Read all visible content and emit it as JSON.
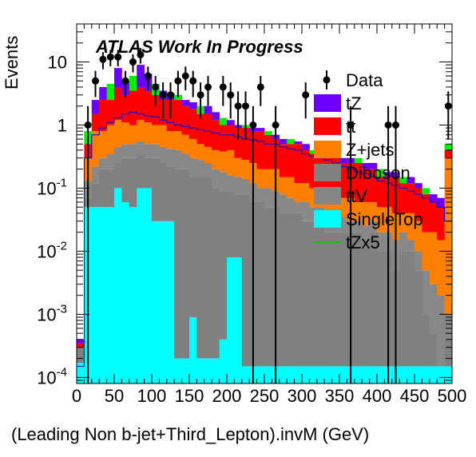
{
  "chart_data": {
    "type": "bar",
    "title": "ATLAS Work In Progress",
    "xlabel": "(Leading Non b-jet+Third_Lepton).invM (GeV)",
    "ylabel": "Events",
    "xlim": [
      0,
      500
    ],
    "ylim": [
      8e-05,
      40
    ],
    "yscale": "log",
    "bin_width": 10,
    "x_ticks": [
      "0",
      "50",
      "100",
      "150",
      "200",
      "250",
      "300",
      "350",
      "400",
      "450",
      "500"
    ],
    "y_ticks": [
      {
        "base": "10",
        "exp": "-4",
        "value": 0.0001
      },
      {
        "base": "10",
        "exp": "-3",
        "value": 0.001
      },
      {
        "base": "10",
        "exp": "-2",
        "value": 0.01
      },
      {
        "base": "10",
        "exp": "-1",
        "value": 0.1
      },
      {
        "base": "1",
        "exp": "",
        "value": 1
      },
      {
        "base": "10",
        "exp": "",
        "value": 10
      }
    ],
    "stack_order_bottom_to_top": [
      "SingleTop",
      "ttV",
      "Diboson",
      "Z+jets",
      "tt",
      "tZ"
    ],
    "stack_totals": {
      "SingleTop": [
        0.00017,
        0.05,
        0.05,
        0.05,
        0.05,
        0.1,
        0.06,
        0.05,
        0.1,
        0.1,
        0.03,
        0.03,
        0.03,
        0.0002,
        0.0002,
        0.0009,
        0.0002,
        0.0002,
        0.0002,
        0.0004,
        0.008,
        0.008,
        0.00015,
        0.00015,
        0.00015,
        0.00015,
        0.00015,
        0.00015,
        0.00015,
        0.00015,
        0.00015,
        0.00015,
        0.00015,
        0.00015,
        0.00015,
        0.00015,
        0.00015,
        0.00015,
        0.00015,
        0.00015,
        0.00015,
        0.00015,
        0.00015,
        0.00015,
        0.00015,
        0.00015,
        0.00015,
        0.00015,
        0.00015,
        0.00015
      ],
      "ttV": [
        0.0003,
        0.07,
        0.12,
        0.2,
        0.2,
        0.25,
        0.3,
        0.3,
        0.35,
        0.3,
        0.3,
        0.25,
        0.22,
        0.2,
        0.2,
        0.15,
        0.15,
        0.15,
        0.1,
        0.09,
        0.09,
        0.08,
        0.08,
        0.06,
        0.06,
        0.05,
        0.05,
        0.04,
        0.04,
        0.04,
        0.03,
        0.03,
        0.03,
        0.02,
        0.02,
        0.02,
        0.02,
        0.02,
        0.015,
        0.02,
        0.01,
        0.01,
        0.005,
        0.01,
        0.01,
        0.005,
        0.001,
        0.0005,
        0.0001,
        0.0004
      ],
      "Diboson": [
        0.0003,
        0.13,
        0.22,
        0.3,
        0.35,
        0.45,
        0.5,
        0.5,
        0.55,
        0.5,
        0.5,
        0.45,
        0.42,
        0.4,
        0.35,
        0.3,
        0.28,
        0.25,
        0.2,
        0.18,
        0.16,
        0.15,
        0.14,
        0.12,
        0.1,
        0.1,
        0.09,
        0.08,
        0.07,
        0.06,
        0.06,
        0.05,
        0.05,
        0.04,
        0.04,
        0.035,
        0.03,
        0.03,
        0.025,
        0.03,
        0.02,
        0.02,
        0.015,
        0.02,
        0.015,
        0.01,
        0.005,
        0.003,
        0.002,
        0.001
      ],
      "Z+jets": [
        0.0003,
        0.3,
        0.8,
        0.8,
        1.0,
        1.2,
        1.1,
        1.0,
        1.2,
        1.1,
        1.0,
        1.0,
        0.8,
        0.8,
        0.7,
        0.6,
        0.5,
        0.45,
        0.4,
        0.38,
        0.4,
        0.3,
        0.28,
        0.25,
        0.2,
        0.2,
        0.2,
        0.15,
        0.15,
        0.12,
        0.12,
        0.1,
        0.1,
        0.08,
        0.08,
        0.07,
        0.07,
        0.06,
        0.06,
        0.06,
        0.05,
        0.05,
        0.04,
        0.04,
        0.04,
        0.03,
        0.02,
        0.02,
        0.015,
        0.3
      ],
      "tt": [
        0.00035,
        0.5,
        1.5,
        2.5,
        2.5,
        4.0,
        3.0,
        3.5,
        4.0,
        3.5,
        3.0,
        2.5,
        2.5,
        2.5,
        2.0,
        1.8,
        1.5,
        1.5,
        1.2,
        1.0,
        1.0,
        0.9,
        0.9,
        0.8,
        0.8,
        0.7,
        0.6,
        0.5,
        0.5,
        0.5,
        0.4,
        0.35,
        0.3,
        0.3,
        0.3,
        0.25,
        0.25,
        0.25,
        0.2,
        0.2,
        0.15,
        0.15,
        0.15,
        0.12,
        0.12,
        0.1,
        0.08,
        0.06,
        0.05,
        0.4
      ],
      "tZ": [
        0.0004,
        0.8,
        2.5,
        4.0,
        4.5,
        8.0,
        5.0,
        6.0,
        9.0,
        6.5,
        4.5,
        3.5,
        3.2,
        3.0,
        2.5,
        2.3,
        2.0,
        2.0,
        1.6,
        1.3,
        1.2,
        1.0,
        1.0,
        0.9,
        0.9,
        0.8,
        0.7,
        0.6,
        0.6,
        0.55,
        0.5,
        0.4,
        0.35,
        0.35,
        0.35,
        0.3,
        0.3,
        0.3,
        0.25,
        0.25,
        0.2,
        0.18,
        0.18,
        0.15,
        0.15,
        0.12,
        0.1,
        0.08,
        0.07,
        0.5
      ]
    },
    "tZx5": [
      0.00015,
      0.3,
      0.7,
      0.9,
      1.1,
      1.3,
      1.5,
      1.6,
      1.5,
      1.4,
      1.35,
      1.2,
      1.1,
      1.0,
      0.95,
      0.9,
      0.85,
      0.8,
      0.75,
      0.7,
      0.7,
      0.65,
      0.6,
      0.58,
      0.55,
      0.5,
      0.5,
      0.45,
      0.42,
      0.4,
      0.35,
      0.32,
      0.3,
      0.28,
      0.25,
      0.22,
      0.2,
      0.18,
      0.17,
      0.15,
      0.13,
      0.12,
      0.11,
      0.1,
      0.09,
      0.08,
      0.07,
      0.06,
      0.05,
      0.03
    ],
    "data_points": [
      {
        "x": 15,
        "y": 1
      },
      {
        "x": 25,
        "y": 5
      },
      {
        "x": 35,
        "y": 11
      },
      {
        "x": 45,
        "y": 12
      },
      {
        "x": 55,
        "y": 12
      },
      {
        "x": 65,
        "y": 5
      },
      {
        "x": 75,
        "y": 10
      },
      {
        "x": 85,
        "y": 13
      },
      {
        "x": 95,
        "y": 6
      },
      {
        "x": 105,
        "y": 4
      },
      {
        "x": 115,
        "y": 3
      },
      {
        "x": 125,
        "y": 3
      },
      {
        "x": 135,
        "y": 5
      },
      {
        "x": 145,
        "y": 6
      },
      {
        "x": 155,
        "y": 5
      },
      {
        "x": 165,
        "y": 3
      },
      {
        "x": 175,
        "y": 4
      },
      {
        "x": 195,
        "y": 4
      },
      {
        "x": 205,
        "y": 3
      },
      {
        "x": 215,
        "y": 2
      },
      {
        "x": 225,
        "y": 2
      },
      {
        "x": 235,
        "y": 1
      },
      {
        "x": 245,
        "y": 4
      },
      {
        "x": 265,
        "y": 1
      },
      {
        "x": 305,
        "y": 3
      },
      {
        "x": 365,
        "y": 1
      },
      {
        "x": 415,
        "y": 1
      },
      {
        "x": 425,
        "y": 1
      },
      {
        "x": 495,
        "y": 2
      }
    ],
    "legend": [
      {
        "label": "Data",
        "color": "#000000",
        "style": "marker"
      },
      {
        "label": "tZ",
        "color": "#6b00ff",
        "style": "box"
      },
      {
        "label": "tt",
        "color": "#ff0000",
        "style": "box"
      },
      {
        "label": "Z+jets",
        "color": "#ff7f00",
        "style": "box"
      },
      {
        "label": "Diboson",
        "color": "#808080",
        "style": "box"
      },
      {
        "label": "ttV",
        "color": "#868686",
        "style": "box"
      },
      {
        "label": "SingleTop",
        "color": "#00ffff",
        "style": "box"
      },
      {
        "label": "tZx5",
        "color": "#00cc00",
        "style": "line"
      }
    ],
    "colors": {
      "SingleTop": "#00ffff",
      "ttV": "#808080",
      "Diboson": "#888888",
      "Z+jets": "#ff7f00",
      "tt": "#ff0000",
      "tZ": "#6b00ff",
      "green_top": "#00ee00",
      "tZx5": "#0000dd"
    },
    "legend_position": "top-right"
  }
}
